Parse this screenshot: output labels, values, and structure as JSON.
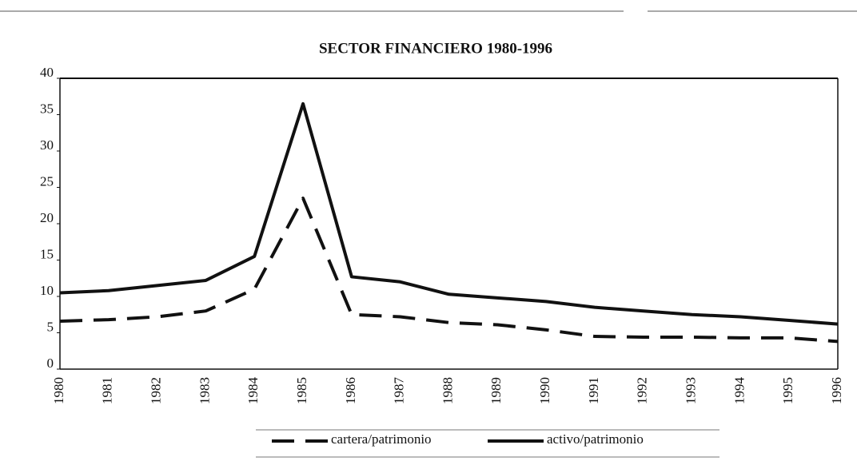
{
  "chart_data": {
    "type": "line",
    "title": "SECTOR FINANCIERO 1980-1996",
    "categories": [
      "1980",
      "1981",
      "1982",
      "1983",
      "1984",
      "1985",
      "1986",
      "1987",
      "1988",
      "1989",
      "1990",
      "1991",
      "1992",
      "1993",
      "1994",
      "1995",
      "1996"
    ],
    "series": [
      {
        "name": "cartera/patrimonio",
        "color": "#111111",
        "line_style": "dashed",
        "values": [
          6.6,
          6.8,
          7.2,
          8.0,
          11.0,
          23.5,
          7.5,
          7.2,
          6.4,
          6.1,
          5.4,
          4.5,
          4.4,
          4.4,
          4.3,
          4.3,
          3.8
        ]
      },
      {
        "name": "activo/patrimonio",
        "color": "#111111",
        "line_style": "solid",
        "values": [
          10.5,
          10.8,
          11.5,
          12.2,
          15.5,
          36.5,
          12.7,
          12.0,
          10.3,
          9.8,
          9.3,
          8.5,
          8.0,
          7.5,
          7.2,
          6.7,
          6.2
        ]
      }
    ],
    "ylim": [
      0,
      40
    ],
    "yticks": [
      0,
      5,
      10,
      15,
      20,
      25,
      30,
      35,
      40
    ],
    "grid": false,
    "legend": "bottom"
  }
}
